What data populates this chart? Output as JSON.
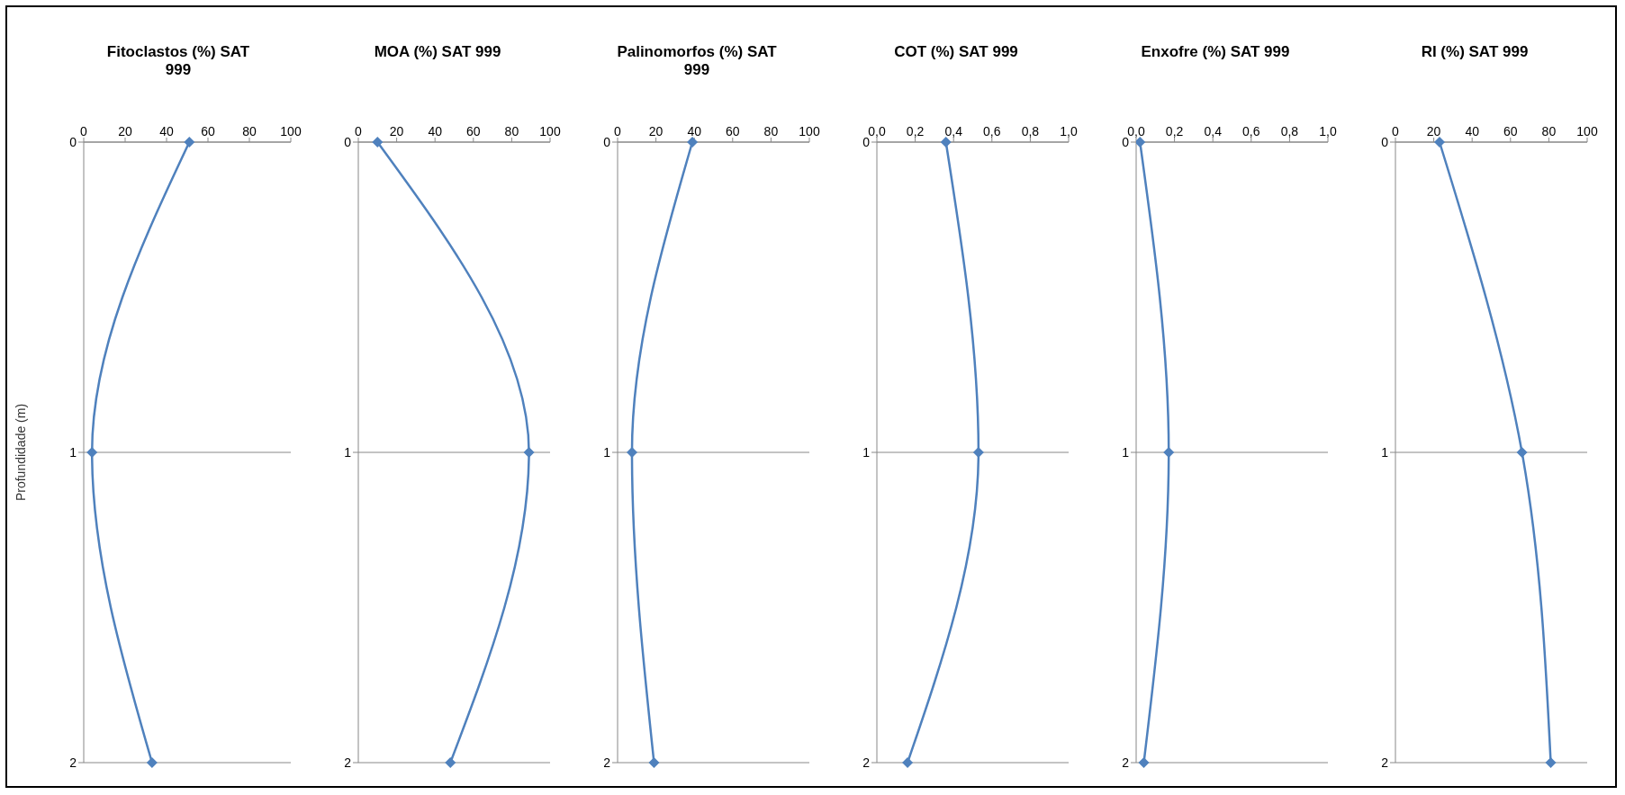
{
  "chart_data": [
    {
      "type": "line",
      "title": "Fitoclastos (%) SAT 999",
      "ylabel": "Profundidade  (m)",
      "orientation": "horizontal",
      "categories": [
        "0",
        "1",
        "2"
      ],
      "series": [
        {
          "color": "#4f81bd",
          "values": [
            51,
            4,
            33
          ]
        }
      ],
      "xlim": [
        0,
        100
      ],
      "xticks": [
        0,
        20,
        40,
        60,
        80,
        100
      ],
      "grid": "y",
      "marker": "diamond",
      "legend": false
    },
    {
      "type": "line",
      "title": "MOA (%) SAT 999",
      "orientation": "horizontal",
      "categories": [
        "0",
        "1",
        "2"
      ],
      "series": [
        {
          "color": "#4f81bd",
          "values": [
            10,
            89,
            48
          ]
        }
      ],
      "xlim": [
        0,
        100
      ],
      "xticks": [
        0,
        20,
        40,
        60,
        80,
        100
      ],
      "grid": "y",
      "marker": "diamond",
      "legend": false
    },
    {
      "type": "line",
      "title": "Palinomorfos  (%) SAT 999",
      "orientation": "horizontal",
      "categories": [
        "0",
        "1",
        "2"
      ],
      "series": [
        {
          "color": "#4f81bd",
          "values": [
            39,
            7.5,
            19
          ]
        }
      ],
      "xlim": [
        0,
        100
      ],
      "xticks": [
        0,
        20,
        40,
        60,
        80,
        100
      ],
      "grid": "y",
      "marker": "diamond",
      "legend": false
    },
    {
      "type": "line",
      "title": "COT (%) SAT 999",
      "orientation": "horizontal",
      "categories": [
        "0",
        "1",
        "2"
      ],
      "series": [
        {
          "color": "#4f81bd",
          "values": [
            0.36,
            0.53,
            0.16
          ]
        }
      ],
      "xlim": [
        0,
        1
      ],
      "xticks": [
        {
          "value": 0,
          "label": "0,0"
        },
        {
          "value": 0.2,
          "label": "0,2"
        },
        {
          "value": 0.4,
          "label": "0,4"
        },
        {
          "value": 0.6,
          "label": "0,6"
        },
        {
          "value": 0.8,
          "label": "0,8"
        },
        {
          "value": 1,
          "label": "1,0"
        }
      ],
      "grid": "y",
      "marker": "diamond",
      "legend": false
    },
    {
      "type": "line",
      "title": "Enxofre (%) SAT 999",
      "orientation": "horizontal",
      "categories": [
        "0",
        "1",
        "2"
      ],
      "series": [
        {
          "color": "#4f81bd",
          "values": [
            0.02,
            0.17,
            0.04
          ]
        }
      ],
      "xlim": [
        0,
        1
      ],
      "xticks": [
        {
          "value": 0,
          "label": "0,0"
        },
        {
          "value": 0.2,
          "label": "0,2"
        },
        {
          "value": 0.4,
          "label": "0,4"
        },
        {
          "value": 0.6,
          "label": "0,6"
        },
        {
          "value": 0.8,
          "label": "0,8"
        },
        {
          "value": 1,
          "label": "1,0"
        }
      ],
      "grid": "y",
      "marker": "diamond",
      "legend": false
    },
    {
      "type": "line",
      "title": "RI (%) SAT 999",
      "orientation": "horizontal",
      "categories": [
        "0",
        "1",
        "2"
      ],
      "series": [
        {
          "color": "#4f81bd",
          "values": [
            23,
            66,
            81
          ]
        }
      ],
      "xlim": [
        0,
        100
      ],
      "xticks": [
        0,
        20,
        40,
        60,
        80,
        100
      ],
      "grid": "y",
      "marker": "diamond",
      "legend": false
    }
  ]
}
